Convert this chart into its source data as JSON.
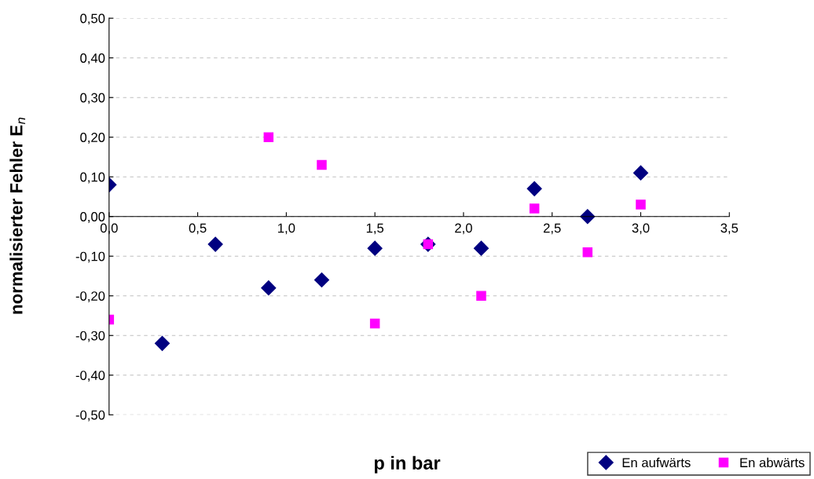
{
  "chart_data": {
    "type": "scatter",
    "xlabel": "p in bar",
    "ylabel": "normalisierter Fehler E$_{n}$",
    "xlim": [
      0,
      3.5
    ],
    "ylim": [
      -0.5,
      0.5
    ],
    "xticks": [
      {
        "value": 0,
        "label": "0,0"
      },
      {
        "value": 0.5,
        "label": "0,5"
      },
      {
        "value": 1,
        "label": "1,0"
      },
      {
        "value": 1.5,
        "label": "1,5"
      },
      {
        "value": 2,
        "label": "2,0"
      },
      {
        "value": 2.5,
        "label": "2,5"
      },
      {
        "value": 3,
        "label": "3,0"
      },
      {
        "value": 3.5,
        "label": "3,5"
      }
    ],
    "yticks": [
      {
        "value": -0.5,
        "label": "-0,50"
      },
      {
        "value": -0.4,
        "label": "-0,40"
      },
      {
        "value": -0.3,
        "label": "-0,30"
      },
      {
        "value": -0.2,
        "label": "-0,20"
      },
      {
        "value": -0.1,
        "label": "-0,10"
      },
      {
        "value": 0,
        "label": "0,00"
      },
      {
        "value": 0.1,
        "label": "0,10"
      },
      {
        "value": 0.2,
        "label": "0,20"
      },
      {
        "value": 0.3,
        "label": "0,30"
      },
      {
        "value": 0.4,
        "label": "0,40"
      },
      {
        "value": 0.5,
        "label": "0,50"
      }
    ],
    "grid": "y",
    "legend": "bottom right",
    "series": [
      {
        "name": "En aufwärts",
        "color": "#000080",
        "marker": "diamond",
        "x": [
          0,
          0.3,
          0.6,
          0.9,
          1.2,
          1.5,
          1.8,
          2.1,
          2.4,
          2.7,
          3.0
        ],
        "values": [
          0.08,
          -0.32,
          -0.07,
          -0.18,
          -0.16,
          -0.08,
          -0.07,
          -0.08,
          0.07,
          0.0,
          0.11
        ]
      },
      {
        "name": "En abwärts",
        "color": "#ff00ff",
        "marker": "square",
        "x": [
          0,
          0.9,
          1.2,
          1.5,
          1.8,
          2.1,
          2.4,
          2.7,
          3.0
        ],
        "values": [
          -0.26,
          0.2,
          0.13,
          -0.27,
          -0.07,
          -0.2,
          0.02,
          -0.09,
          0.03
        ]
      }
    ]
  }
}
